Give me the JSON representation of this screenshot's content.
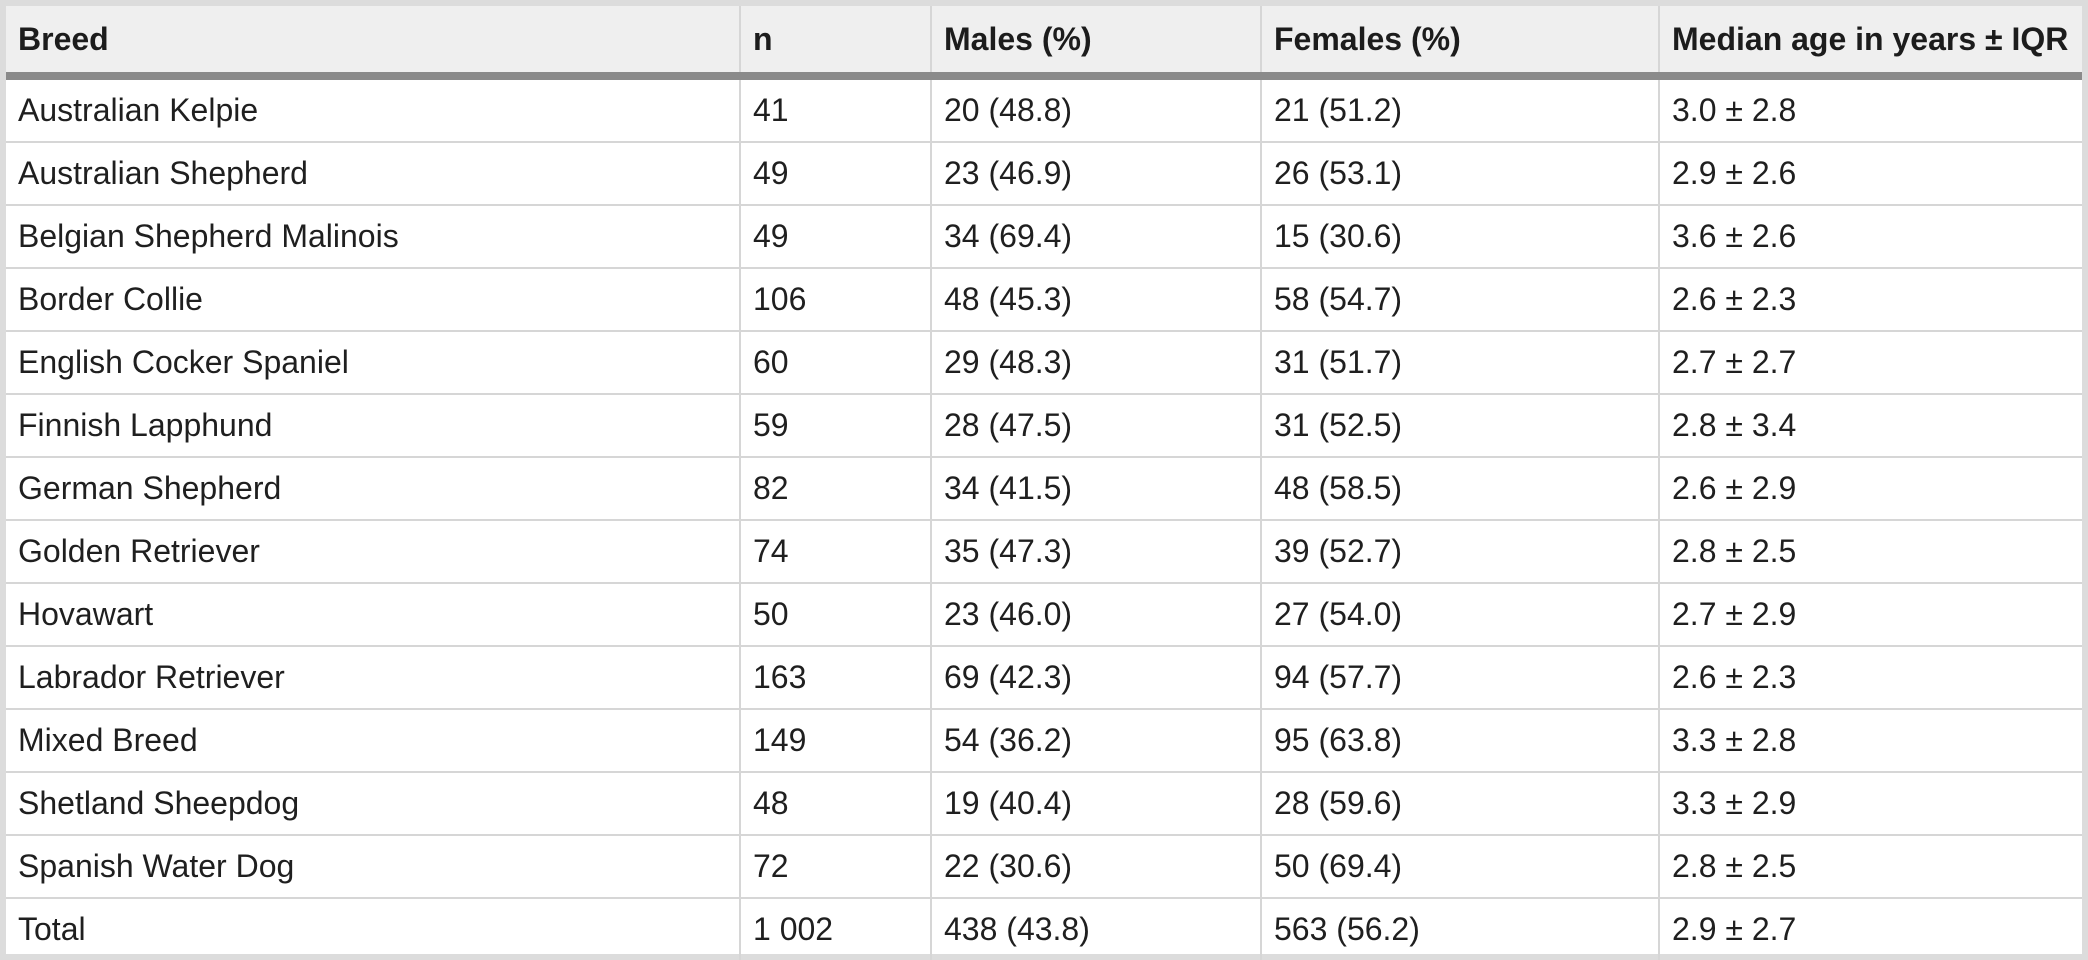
{
  "table": {
    "headers": [
      "Breed",
      "n",
      "Males (%)",
      "Females (%)",
      "Median age in years ± IQR"
    ],
    "rows": [
      [
        "Australian Kelpie",
        "41",
        "20 (48.8)",
        "21 (51.2)",
        "3.0 ± 2.8"
      ],
      [
        "Australian Shepherd",
        "49",
        "23 (46.9)",
        "26 (53.1)",
        "2.9 ± 2.6"
      ],
      [
        "Belgian Shepherd Malinois",
        "49",
        "34 (69.4)",
        "15 (30.6)",
        "3.6 ± 2.6"
      ],
      [
        "Border Collie",
        "106",
        "48 (45.3)",
        "58 (54.7)",
        "2.6 ± 2.3"
      ],
      [
        "English Cocker Spaniel",
        "60",
        "29 (48.3)",
        "31 (51.7)",
        "2.7 ± 2.7"
      ],
      [
        "Finnish Lapphund",
        "59",
        "28 (47.5)",
        "31 (52.5)",
        "2.8 ± 3.4"
      ],
      [
        "German Shepherd",
        "82",
        "34 (41.5)",
        "48 (58.5)",
        "2.6 ± 2.9"
      ],
      [
        "Golden Retriever",
        "74",
        "35 (47.3)",
        "39 (52.7)",
        "2.8 ± 2.5"
      ],
      [
        "Hovawart",
        "50",
        "23 (46.0)",
        "27 (54.0)",
        "2.7 ± 2.9"
      ],
      [
        "Labrador Retriever",
        "163",
        "69 (42.3)",
        "94 (57.7)",
        "2.6 ± 2.3"
      ],
      [
        "Mixed Breed",
        "149",
        "54 (36.2)",
        "95 (63.8)",
        "3.3 ± 2.8"
      ],
      [
        "Shetland Sheepdog",
        "48",
        "19 (40.4)",
        "28 (59.6)",
        "3.3 ± 2.9"
      ],
      [
        "Spanish Water Dog",
        "72",
        "22 (30.6)",
        "50 (69.4)",
        "2.8 ± 2.5"
      ],
      [
        "Total",
        "1 002",
        "438 (43.8)",
        "563 (56.2)",
        "2.9 ± 2.7"
      ]
    ]
  }
}
